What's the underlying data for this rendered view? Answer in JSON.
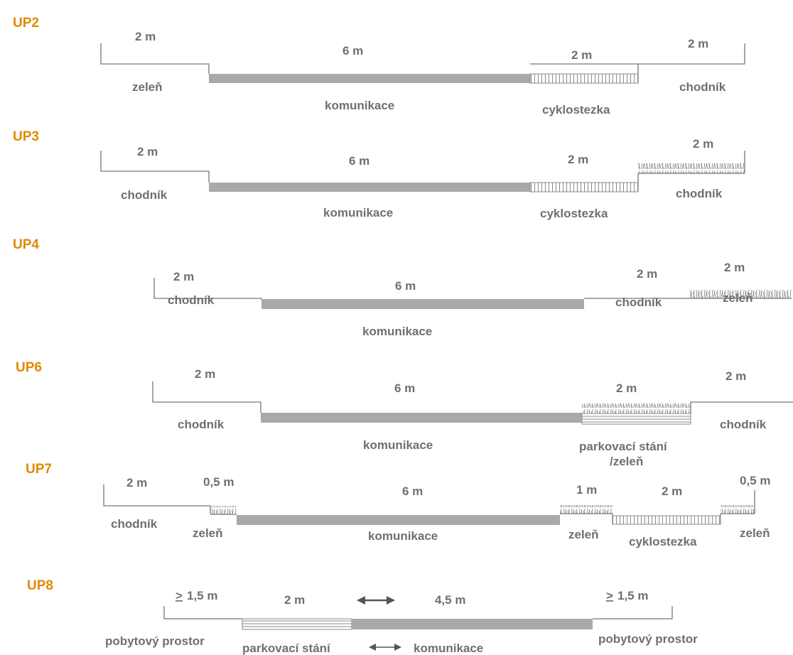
{
  "colors": {
    "heading": "#e08a00",
    "label": "#6f6f6f",
    "road": "#a9a9a9",
    "line": "#777777"
  },
  "profiles": {
    "up2": {
      "title": "UP2",
      "w_left": "2 m",
      "w_road": "6 m",
      "w_bike": "2 m",
      "w_right": "2 m",
      "l_left": "zeleň",
      "l_road": "komunikace",
      "l_bike": "cyklostezka",
      "l_right": "chodník"
    },
    "up3": {
      "title": "UP3",
      "w_left": "2 m",
      "w_road": "6 m",
      "w_bike": "2 m",
      "w_right": "2 m",
      "l_left": "chodník",
      "l_road": "komunikace",
      "l_bike": "cyklostezka",
      "l_right": "chodník"
    },
    "up4": {
      "title": "UP4",
      "w_left": "2 m",
      "w_road": "6 m",
      "w_walk": "2 m",
      "w_green": "2 m",
      "l_left": "chodník",
      "l_road": "komunikace",
      "l_walk": "chodník",
      "l_green": "zeleň"
    },
    "up6": {
      "title": "UP6",
      "w_left": "2 m",
      "w_road": "6 m",
      "w_park": "2 m",
      "w_right": "2 m",
      "l_left": "chodník",
      "l_road": "komunikace",
      "l_park1": "parkovací stání",
      "l_park2": "/zeleň",
      "l_right": "chodník"
    },
    "up7": {
      "title": "UP7",
      "w_left": "2 m",
      "w_green1": "0,5 m",
      "w_road": "6 m",
      "w_green2": "1 m",
      "w_bike": "2 m",
      "w_green3": "0,5 m",
      "l_left": "chodník",
      "l_green1": "zeleň",
      "l_road": "komunikace",
      "l_green2": "zeleň",
      "l_bike": "cyklostezka",
      "l_green3": "zeleň"
    },
    "up8": {
      "title": "UP8",
      "w_left": "1,5 m",
      "w_left_sym": ">",
      "w_park": "2 m",
      "w_road": "4,5 m",
      "w_right": "1,5 m",
      "w_right_sym": ">",
      "l_left": "pobytový prostor",
      "l_park": "parkovací stání",
      "l_road": "komunikace",
      "l_right": "pobytový prostor"
    }
  }
}
